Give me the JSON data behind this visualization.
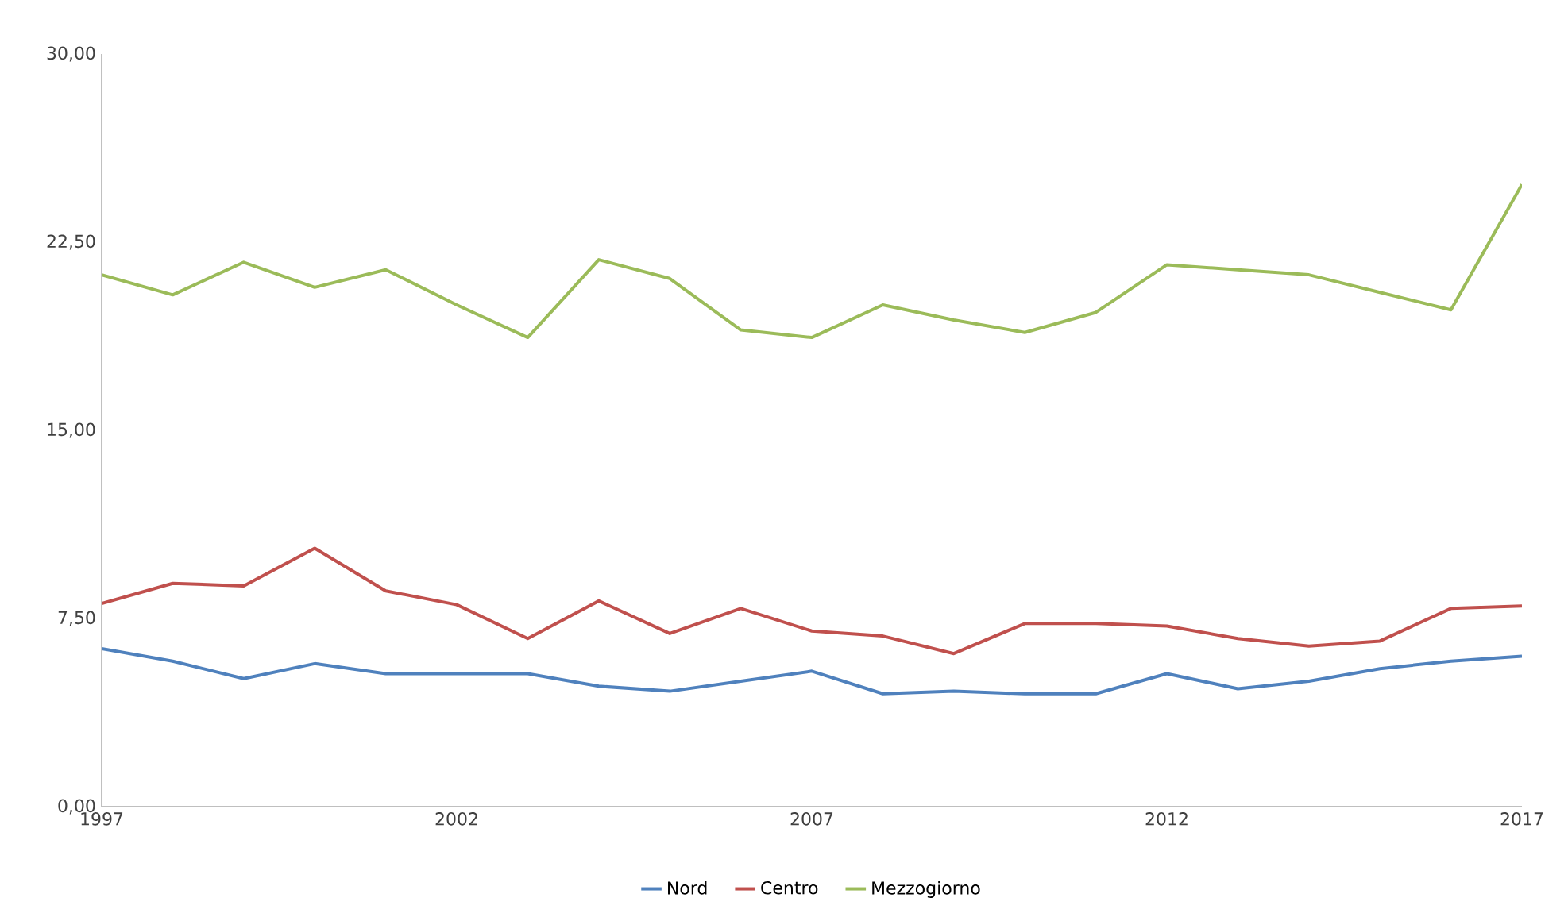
{
  "chart_data": {
    "type": "line",
    "x": [
      1997,
      1998,
      1999,
      2000,
      2001,
      2002,
      2003,
      2004,
      2005,
      2006,
      2007,
      2008,
      2009,
      2010,
      2011,
      2012,
      2013,
      2014,
      2015,
      2016,
      2017
    ],
    "series": [
      {
        "name": "Nord",
        "color": "#4f81bd",
        "values": [
          6.3,
          5.8,
          5.1,
          5.7,
          5.3,
          5.3,
          5.3,
          4.8,
          4.6,
          5.0,
          5.4,
          4.5,
          4.6,
          4.5,
          4.5,
          5.3,
          4.7,
          5.0,
          5.5,
          5.8,
          6.0
        ]
      },
      {
        "name": "Centro",
        "color": "#c0504d",
        "values": [
          8.1,
          8.9,
          8.8,
          10.3,
          8.6,
          8.05,
          6.7,
          8.2,
          6.9,
          7.9,
          7.0,
          6.8,
          6.1,
          7.3,
          7.3,
          7.2,
          6.7,
          6.4,
          6.6,
          7.9,
          8.0
        ]
      },
      {
        "name": "Mezzogiorno",
        "color": "#9bbb59",
        "values": [
          21.2,
          20.4,
          21.7,
          20.7,
          21.4,
          20.0,
          18.7,
          21.8,
          21.05,
          19.0,
          18.7,
          20.0,
          19.4,
          18.9,
          19.7,
          21.6,
          21.4,
          21.2,
          20.5,
          19.8,
          24.8
        ]
      }
    ],
    "xlim": [
      1997,
      2017
    ],
    "xticks": [
      1997,
      2002,
      2007,
      2012,
      2017
    ],
    "ylim": [
      0,
      30
    ],
    "yticks": [
      {
        "value": 0,
        "label": "0,00"
      },
      {
        "value": 7.5,
        "label": "7,50"
      },
      {
        "value": 15,
        "label": "15,00"
      },
      {
        "value": 22.5,
        "label": "22,50"
      },
      {
        "value": 30,
        "label": "30,00"
      }
    ],
    "grid": false,
    "legend": "bottom",
    "marker": "none",
    "line_style": "solid"
  }
}
